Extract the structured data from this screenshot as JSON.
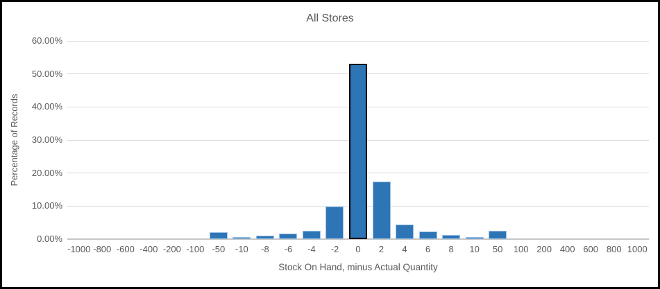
{
  "chart_data": {
    "type": "bar",
    "title": "All Stores",
    "xlabel": "Stock On Hand, minus Actual Quantity",
    "ylabel": "Percentage of Records",
    "categories": [
      "-1000",
      "-800",
      "-600",
      "-400",
      "-200",
      "-100",
      "-50",
      "-10",
      "-8",
      "-6",
      "-4",
      "-2",
      "0",
      "2",
      "4",
      "6",
      "8",
      "10",
      "50",
      "100",
      "200",
      "400",
      "600",
      "800",
      "1000"
    ],
    "values": [
      0,
      0,
      0,
      0,
      0,
      0,
      2.1,
      0.7,
      1.0,
      1.7,
      2.5,
      9.8,
      53.0,
      17.5,
      4.4,
      2.4,
      1.3,
      0.7,
      2.6,
      0,
      0,
      0,
      0,
      0,
      0
    ],
    "value_unit": "percent",
    "y_ticks": [
      "0.00%",
      "10.00%",
      "20.00%",
      "30.00%",
      "40.00%",
      "50.00%",
      "60.00%"
    ],
    "ylim": [
      0,
      60
    ],
    "grid": true,
    "legend": false,
    "highlighted_category": "0",
    "colors": {
      "bar_fill": "#2e75b6",
      "bar_border": "#9dc3e6",
      "highlight_border": "#000000",
      "gridline": "#d9d9d9",
      "axis_line": "#c6c6c6",
      "text": "#595959",
      "chart_border": "#000000",
      "background": "#ffffff"
    }
  }
}
